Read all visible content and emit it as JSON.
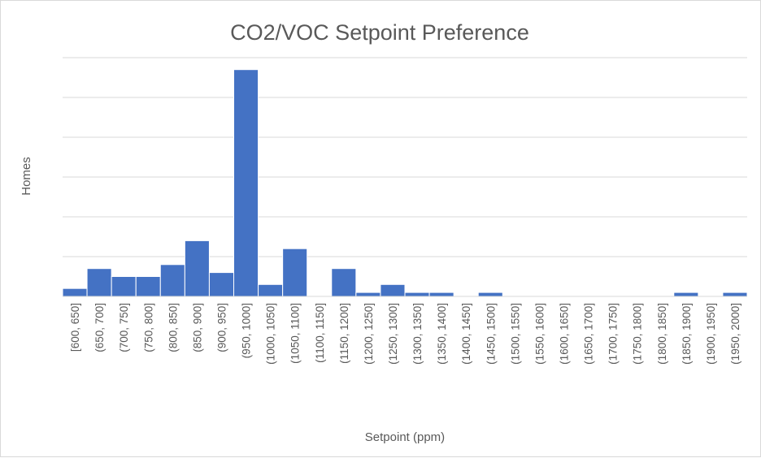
{
  "chart_data": {
    "type": "bar",
    "title": "CO2/VOC Setpoint Preference",
    "xlabel": "Setpoint (ppm)",
    "ylabel": "Homes",
    "categories": [
      "[600, 650]",
      "(650, 700]",
      "(700, 750]",
      "(750, 800]",
      "(800, 850]",
      "(850, 900]",
      "(900, 950]",
      "(950, 1000]",
      "(1000, 1050]",
      "(1050, 1100]",
      "(1100, 1150]",
      "(1150, 1200]",
      "(1200, 1250]",
      "(1250, 1300]",
      "(1300, 1350]",
      "(1350, 1400]",
      "(1400, 1450]",
      "(1450, 1500]",
      "(1500, 1550]",
      "(1550, 1600]",
      "(1600, 1650]",
      "(1650, 1700]",
      "(1700, 1750]",
      "(1750, 1800]",
      "(1800, 1850]",
      "(1850, 1900]",
      "(1900, 1950]",
      "(1950, 2000]"
    ],
    "values": [
      2,
      7,
      5,
      5,
      8,
      14,
      6,
      57,
      3,
      12,
      0,
      7,
      1,
      3,
      1,
      1,
      0,
      1,
      0,
      0,
      0,
      0,
      0,
      0,
      0,
      1,
      0,
      1
    ],
    "ylim": [
      0,
      60
    ],
    "gridlines": true,
    "y_tick_labels_shown": false,
    "legend": "none",
    "bar_color": "#4472C4",
    "text_color": "#595959",
    "grid_color": "#d9d9d9"
  }
}
